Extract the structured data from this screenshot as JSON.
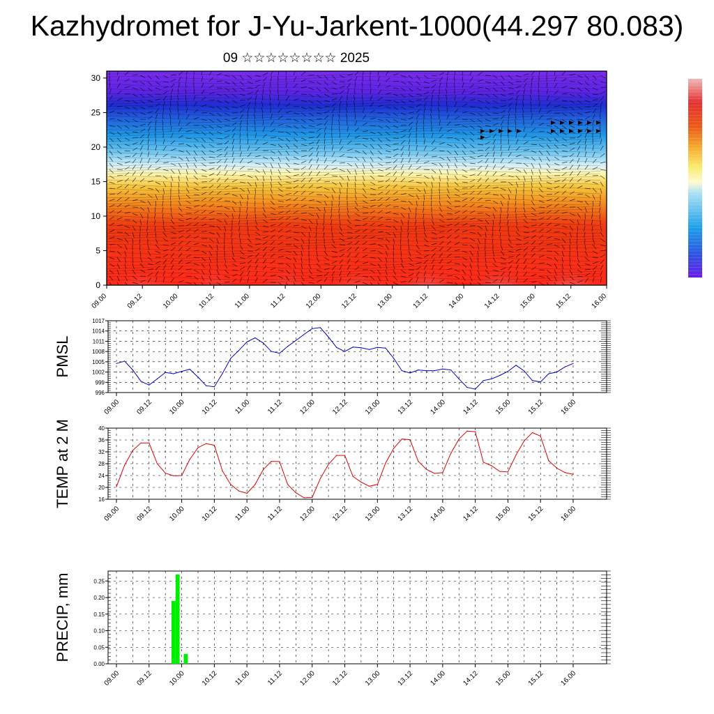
{
  "title": "Kazhydromet for J-Yu-Jarkent-1000(44.297 80.083)",
  "subtitle": "09 ☆☆☆☆☆☆☆☆ 2025",
  "chart_data": [
    {
      "type": "heatmap",
      "name": "cross-section",
      "x_ticks": [
        "09.00",
        "09.12",
        "10.00",
        "10.12",
        "11.00",
        "11.12",
        "12.00",
        "12.12",
        "13.00",
        "13.12",
        "14.00",
        "14.12",
        "15.00",
        "15.12",
        "16.00"
      ],
      "y_ticks": [
        "0",
        "5",
        "10",
        "15",
        "20",
        "25",
        "30"
      ],
      "ylim": [
        0,
        31
      ],
      "colorbar_colors": [
        "#f1b7b7",
        "#e53030",
        "#ea5a1a",
        "#f4a72c",
        "#fbe96a",
        "#fffbd0",
        "#a6dff4",
        "#1ea0e8",
        "#2d55e0",
        "#6a1ee8"
      ]
    },
    {
      "type": "line",
      "ylabel": "PMSL",
      "color": "#0000cc",
      "x_ticks": [
        "09.00",
        "09.12",
        "10.00",
        "10.12",
        "11.00",
        "11.12",
        "12.00",
        "12.12",
        "13.00",
        "13.12",
        "14.00",
        "14.12",
        "15.00",
        "15.12",
        "16.00"
      ],
      "y_ticks": [
        "996",
        "999",
        "1002",
        "1005",
        "1008",
        "1011",
        "1014",
        "1017"
      ],
      "ylim": [
        996,
        1017
      ],
      "x_step_hours": 3,
      "values": [
        1004.5,
        1005.2,
        1002.6,
        999.3,
        998.2,
        1000,
        1001.9,
        1001.5,
        1002.2,
        1002.8,
        1000.5,
        998,
        997.7,
        1001.6,
        1006,
        1008.3,
        1010.8,
        1012,
        1010.5,
        1008,
        1007.5,
        1009.5,
        1011.2,
        1013,
        1014.7,
        1015,
        1012.2,
        1009.2,
        1008,
        1009.3,
        1009.1,
        1008.6,
        1009.2,
        1009,
        1006,
        1002.4,
        1001.7,
        1002.6,
        1002.4,
        1002.4,
        1002.9,
        1002.6,
        1000,
        997.5,
        997,
        999.5,
        1000,
        1001,
        1002.2,
        1004,
        1002.3,
        999.5,
        999.1,
        1001.5,
        1002,
        1003.5,
        1004.5
      ]
    },
    {
      "type": "line",
      "ylabel": "TEMP at 2 M",
      "color": "#dd0000",
      "x_ticks": [
        "09.00",
        "09.12",
        "10.00",
        "10.12",
        "11.00",
        "11.12",
        "12.00",
        "12.12",
        "13.00",
        "13.12",
        "14.00",
        "14.12",
        "15.00",
        "15.12",
        "16.00"
      ],
      "y_ticks": [
        "16",
        "20",
        "24",
        "28",
        "32",
        "36",
        "40"
      ],
      "ylim": [
        16,
        40
      ],
      "x_step_hours": 3,
      "values": [
        20.2,
        27.5,
        32.5,
        35,
        35,
        28,
        24.8,
        23.9,
        24,
        29.5,
        33.4,
        34.8,
        34.2,
        25.5,
        21,
        18.8,
        18,
        21,
        26,
        28.8,
        28.7,
        21,
        18.2,
        16.5,
        16.6,
        23,
        27.8,
        30.8,
        30.8,
        23.7,
        21.8,
        20.4,
        21,
        28.2,
        33.2,
        36.3,
        36.1,
        28.8,
        26.1,
        24.7,
        25,
        31.5,
        36.3,
        39,
        38.8,
        28.5,
        27.3,
        25.4,
        25.2,
        31,
        35.7,
        38.5,
        37.3,
        29,
        26.5,
        25,
        24.4
      ]
    },
    {
      "type": "bar",
      "ylabel": "PRECIP, mm",
      "color": "#00ee00",
      "x_ticks": [
        "09.00",
        "09.12",
        "10.00",
        "10.12",
        "11.00",
        "11.12",
        "12.00",
        "12.12",
        "13.00",
        "13.12",
        "14.00",
        "14.12",
        "15.00",
        "15.12",
        "16.00"
      ],
      "y_ticks": [
        "0.00",
        "0.05",
        "0.10",
        "0.15",
        "0.20",
        "0.25"
      ],
      "ylim": [
        0,
        0.28
      ],
      "bars": [
        {
          "x": 10.75,
          "value": 0.19
        },
        {
          "x": 10.875,
          "value": 0.27
        },
        {
          "x": 11.125,
          "value": 0.03
        }
      ]
    }
  ]
}
